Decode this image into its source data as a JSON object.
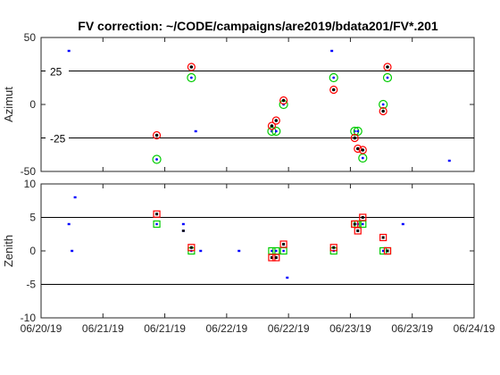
{
  "chart_data": {
    "title": "FV correction: ~/CODE/campaigns/are2019/bdata201/FV*.201",
    "x_ticks": [
      "06/20/19",
      "06/21/19",
      "06/21/19",
      "06/22/19",
      "06/22/19",
      "06/23/19",
      "06/23/19",
      "06/24/19"
    ],
    "x_range": [
      0,
      7
    ],
    "subplots": [
      {
        "name": "azimuth",
        "type": "scatter",
        "ylabel": "Azimut",
        "ylim": [
          -50,
          50
        ],
        "y_ticks": [
          "50",
          "0",
          "-50"
        ],
        "ref_lines": [
          25,
          -25
        ],
        "ref_labels": [
          {
            "value": 25,
            "text": "25"
          },
          {
            "value": -25,
            "text": "-25"
          }
        ],
        "grid": false,
        "series": {
          "blue_points": [
            [
              0.45,
              40
            ],
            [
              2.5,
              -20
            ],
            [
              4.7,
              40
            ],
            [
              6.6,
              -42
            ]
          ],
          "red_circles": [
            [
              1.87,
              -23
            ],
            [
              2.43,
              28
            ],
            [
              3.73,
              -16
            ],
            [
              3.8,
              -12
            ],
            [
              3.92,
              3
            ],
            [
              4.73,
              11
            ],
            [
              5.07,
              -25
            ],
            [
              5.12,
              -33
            ],
            [
              5.2,
              -34
            ],
            [
              5.53,
              -5
            ],
            [
              5.6,
              28
            ]
          ],
          "green_circles": [
            [
              1.87,
              -41
            ],
            [
              2.43,
              20
            ],
            [
              3.73,
              -20
            ],
            [
              3.8,
              -20
            ],
            [
              3.92,
              0
            ],
            [
              4.73,
              20
            ],
            [
              5.07,
              -20
            ],
            [
              5.12,
              -20
            ],
            [
              5.2,
              -40
            ],
            [
              5.53,
              0
            ],
            [
              5.6,
              20
            ]
          ]
        }
      },
      {
        "name": "zenith",
        "type": "scatter",
        "ylabel": "Zenith",
        "ylim": [
          -10,
          10
        ],
        "y_ticks": [
          "10",
          "5",
          "0",
          "-5",
          "-10"
        ],
        "ref_lines": [
          5,
          -5
        ],
        "grid": false,
        "series": {
          "blue_points": [
            [
              0.45,
              4
            ],
            [
              0.5,
              0
            ],
            [
              0.55,
              8
            ],
            [
              2.3,
              4
            ],
            [
              2.3,
              3
            ],
            [
              2.58,
              0
            ],
            [
              3.2,
              0
            ],
            [
              3.98,
              -4
            ],
            [
              5.85,
              4
            ]
          ],
          "black_points": [
            [
              2.3,
              3
            ]
          ],
          "red_squares": [
            [
              1.87,
              5.5
            ],
            [
              2.43,
              0.5
            ],
            [
              3.73,
              -1
            ],
            [
              3.8,
              -1
            ],
            [
              3.92,
              1
            ],
            [
              4.73,
              0.5
            ],
            [
              5.07,
              4
            ],
            [
              5.12,
              3
            ],
            [
              5.2,
              5
            ],
            [
              5.53,
              2
            ],
            [
              5.6,
              0
            ]
          ],
          "green_squares": [
            [
              1.87,
              4
            ],
            [
              2.43,
              0
            ],
            [
              3.73,
              0
            ],
            [
              3.8,
              0
            ],
            [
              3.92,
              0
            ],
            [
              4.73,
              0
            ],
            [
              5.07,
              4
            ],
            [
              5.12,
              4
            ],
            [
              5.2,
              4
            ],
            [
              5.53,
              0
            ],
            [
              5.6,
              0
            ]
          ]
        }
      }
    ],
    "colors": {
      "blue": "#0000ff",
      "red": "#ff0000",
      "green": "#00cc00",
      "black": "#000000",
      "axis": "#262626"
    }
  }
}
